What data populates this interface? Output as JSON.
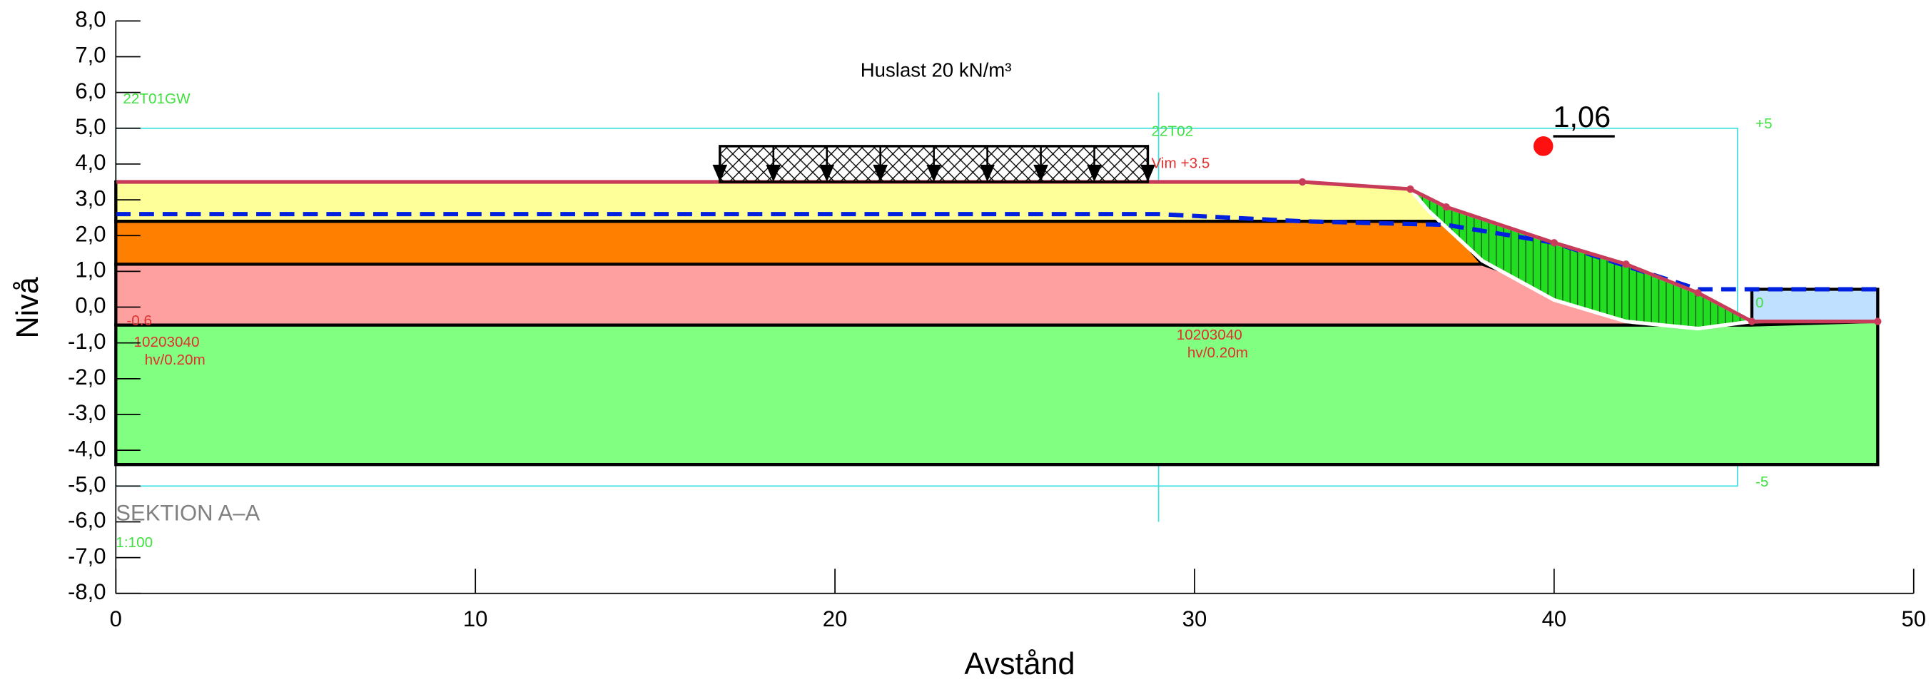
{
  "chart_data": {
    "type": "section",
    "title": "Huslast 20 kN/m³",
    "xlabel": "Avstånd",
    "ylabel": "Nivå",
    "xlim": [
      0,
      50
    ],
    "ylim": [
      -8,
      8
    ],
    "xticks": [
      0,
      10,
      20,
      30,
      40,
      50
    ],
    "yticks": [
      {
        "value": 8,
        "label": "8,0"
      },
      {
        "value": 7,
        "label": "7,0"
      },
      {
        "value": 6,
        "label": "6,0"
      },
      {
        "value": 5,
        "label": "5,0"
      },
      {
        "value": 4,
        "label": "4,0"
      },
      {
        "value": 3,
        "label": "3,0"
      },
      {
        "value": 2,
        "label": "2,0"
      },
      {
        "value": 1,
        "label": "1,0"
      },
      {
        "value": 0,
        "label": "0,0"
      },
      {
        "value": -1,
        "label": "-1,0"
      },
      {
        "value": -2,
        "label": "-2,0"
      },
      {
        "value": -3,
        "label": "-3,0"
      },
      {
        "value": -4,
        "label": "-4,0"
      },
      {
        "value": -5,
        "label": "-5,0"
      },
      {
        "value": -6,
        "label": "-6,0"
      },
      {
        "value": -7,
        "label": "-7,0"
      },
      {
        "value": -8,
        "label": "-8,0"
      }
    ],
    "layers": [
      {
        "color": "#80ff80",
        "x": [
          0,
          45.5,
          49,
          49,
          0
        ],
        "y": [
          -0.5,
          -0.5,
          -0.4,
          -4.4,
          -4.4
        ]
      },
      {
        "color": "#ffa0a0",
        "x": [
          0,
          38,
          40,
          42,
          44,
          45.5,
          0
        ],
        "y": [
          1.2,
          1.2,
          0.5,
          0,
          -0.4,
          -0.5,
          -0.5
        ]
      },
      {
        "color": "#ff8000",
        "x": [
          0,
          37,
          38,
          0
        ],
        "y": [
          2.4,
          2.4,
          1.2,
          1.2
        ]
      },
      {
        "color": "#ffff99",
        "x": [
          0,
          29,
          33,
          36,
          37,
          0
        ],
        "y": [
          3.5,
          3.5,
          3.5,
          3.3,
          2.4,
          2.4
        ]
      },
      {
        "color": "#c0e0ff",
        "x": [
          45.5,
          49,
          49,
          45.5
        ],
        "y": [
          -0.4,
          -0.4,
          0.5,
          0.5
        ]
      }
    ],
    "slip": {
      "color": "#22dd22",
      "x": [
        36,
        37,
        40,
        42,
        44,
        45.5,
        44,
        42,
        40,
        38,
        36.5
      ],
      "y": [
        3.3,
        2.8,
        1.8,
        1.2,
        0.4,
        -0.4,
        -0.6,
        -0.4,
        0.2,
        1.3,
        2.7
      ]
    },
    "ground": {
      "color": "#c83c5a",
      "x": [
        0,
        29,
        33,
        36,
        37,
        40,
        42,
        44,
        45.5,
        49
      ],
      "y": [
        3.5,
        3.5,
        3.5,
        3.3,
        2.8,
        1.8,
        1.2,
        0.4,
        -0.4,
        -0.4
      ]
    },
    "water": {
      "color": "#0020e0",
      "x": [
        0,
        29,
        33,
        37,
        40,
        44,
        49
      ],
      "y": [
        2.6,
        2.6,
        2.4,
        2.3,
        1.8,
        0.5,
        0.5
      ]
    },
    "load": {
      "x": [
        16.8,
        28.7
      ],
      "y": [
        3.5,
        4.5
      ]
    },
    "safety_factor": {
      "value": 1.06,
      "label": "1,06",
      "x": 39.7,
      "y": 4.5
    },
    "annotations": [
      {
        "text": "22T01GW",
        "x": 0.2,
        "y": 5.8,
        "color": "#40e040"
      },
      {
        "text": "22T02",
        "x": 28.8,
        "y": 4.9,
        "color": "#40e040"
      },
      {
        "text": "Vim +3.5",
        "x": 28.8,
        "y": 4.0,
        "color": "#e03030"
      },
      {
        "text": "10203040",
        "x": 0.5,
        "y": -1.0,
        "color": "#e03030"
      },
      {
        "text": "hv/0.20m",
        "x": 0.8,
        "y": -1.5,
        "color": "#e03030"
      },
      {
        "text": "10203040",
        "x": 29.5,
        "y": -0.8,
        "color": "#e03030"
      },
      {
        "text": "hv/0.20m",
        "x": 29.8,
        "y": -1.3,
        "color": "#e03030"
      },
      {
        "text": "-0.6",
        "x": 0.3,
        "y": -0.4,
        "color": "#e03030"
      },
      {
        "text": "+5",
        "x": 45.6,
        "y": 5.1,
        "color": "#40e040"
      },
      {
        "text": "0",
        "x": 45.6,
        "y": 0.1,
        "color": "#40e040"
      },
      {
        "text": "-5",
        "x": 45.6,
        "y": -4.9,
        "color": "#40e040"
      },
      {
        "text": "SEKTION A–A",
        "x": 0,
        "y": -5.8,
        "color": "#808080"
      },
      {
        "text": "1:100",
        "x": 0,
        "y": -6.6,
        "color": "#40e040"
      }
    ]
  }
}
